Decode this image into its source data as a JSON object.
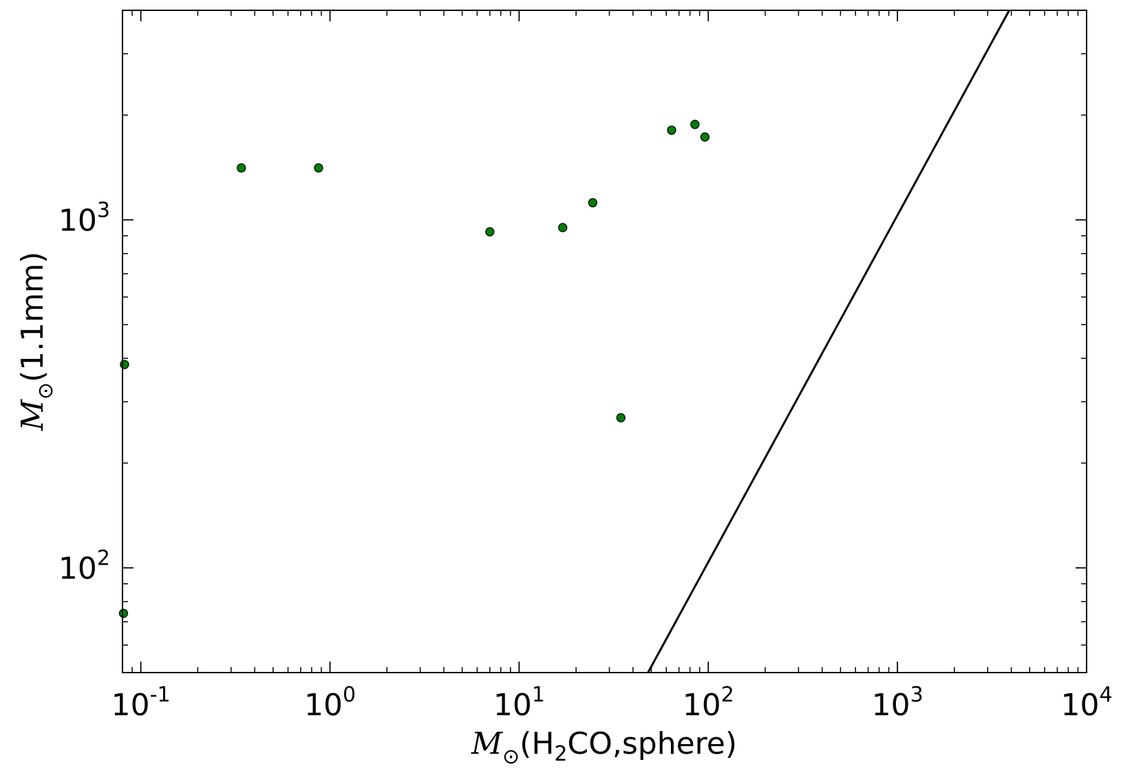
{
  "chart_data": {
    "type": "scatter",
    "title": "",
    "xlabel": {
      "symbol": "M",
      "subscript": "⊙",
      "text": "(H",
      "sub2": "2",
      "text2": "CO,sphere)"
    },
    "ylabel": {
      "symbol": "M",
      "subscript": "⊙",
      "text": "(1.1mm)"
    },
    "xscale": "log",
    "yscale": "log",
    "xlim": [
      0.08,
      10000
    ],
    "ylim": [
      50,
      4000
    ],
    "x_ticks": [
      {
        "value": 0.1,
        "base": "10",
        "exp": "-1"
      },
      {
        "value": 1,
        "base": "10",
        "exp": "0"
      },
      {
        "value": 10,
        "base": "10",
        "exp": "1"
      },
      {
        "value": 100,
        "base": "10",
        "exp": "2"
      },
      {
        "value": 1000,
        "base": "10",
        "exp": "3"
      },
      {
        "value": 10000,
        "base": "10",
        "exp": "4"
      }
    ],
    "y_ticks": [
      {
        "value": 100,
        "base": "10",
        "exp": "2"
      },
      {
        "value": 1000,
        "base": "10",
        "exp": "3"
      }
    ],
    "grid": false,
    "series": [
      {
        "marker": "circle",
        "color": "#008000",
        "points": [
          {
            "x": 0.082,
            "y": 384
          },
          {
            "x": 0.081,
            "y": 74
          },
          {
            "x": 0.34,
            "y": 1410
          },
          {
            "x": 0.87,
            "y": 1410
          },
          {
            "x": 7.0,
            "y": 924
          },
          {
            "x": 17.0,
            "y": 950
          },
          {
            "x": 24.5,
            "y": 1120
          },
          {
            "x": 34.5,
            "y": 270
          },
          {
            "x": 64.0,
            "y": 1810
          },
          {
            "x": 85.0,
            "y": 1880
          },
          {
            "x": 96.0,
            "y": 1730
          }
        ]
      },
      {
        "type": "line",
        "color": "#000000",
        "points": [
          {
            "x": 48.0,
            "y": 50
          },
          {
            "x": 3900,
            "y": 4000
          }
        ]
      }
    ]
  }
}
